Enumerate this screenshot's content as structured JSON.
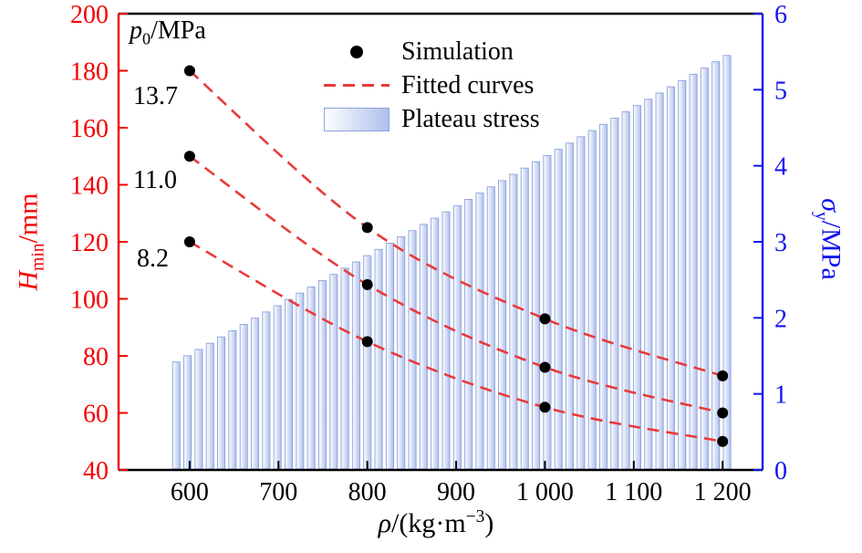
{
  "style": {
    "background": "#ffffff",
    "axis_red": "#f40000",
    "axis_blue": "#1212f0",
    "curve_red": "#e93a3a",
    "bar_fill": "#aebfeb",
    "bar_fill_light": "#ffffff",
    "bar_stroke": "#8ba1dd",
    "dot_color": "#000000",
    "frame_black": "#000000"
  },
  "legend": {
    "items": [
      {
        "label": "Simulation",
        "marker": "black-dot"
      },
      {
        "label": "Fitted curves",
        "marker": "red-dashed-line"
      },
      {
        "label": "Plateau stress",
        "marker": "blue-gradient-rect"
      }
    ]
  },
  "axis_labels": {
    "left": {
      "main": "H",
      "sub": "min",
      "unit": "/mm"
    },
    "right": {
      "main": "σ",
      "sub": "y",
      "unit": "/MPa"
    },
    "x": {
      "main": "ρ",
      "pre": "/(kg·m",
      "sup": "−3",
      "post": ")"
    }
  },
  "annotations": {
    "p0": {
      "main": "p",
      "sub": "0",
      "unit": "/MPa"
    },
    "curve_labels": [
      "13.7",
      "11.0",
      "8.2"
    ]
  },
  "chart_data": [
    {
      "type": "bar",
      "name": "Plateau stress",
      "axis": "right",
      "ylabel": "σy/MPa",
      "ylim": [
        0,
        6
      ],
      "yticks": [
        0,
        1,
        2,
        3,
        4,
        5,
        6
      ],
      "x_start": 585,
      "x_end": 1205,
      "bar_count": 50,
      "value_start": 1.42,
      "value_end": 5.45,
      "note": "thin vertical gradient bars; plateau stress increases linearly with density"
    },
    {
      "type": "scatter",
      "name": "Simulation with fitted curves",
      "axis": "left",
      "xlabel": "ρ/(kg·m−3)",
      "x_range": [
        520,
        1245
      ],
      "xticks": [
        600,
        700,
        800,
        900,
        1000,
        1100,
        1200
      ],
      "xtick_labels": [
        "600",
        "700",
        "800",
        "900",
        "1 000",
        "1 100",
        "1 200"
      ],
      "ylabel": "Hmin/mm",
      "ylim": [
        40,
        200
      ],
      "yticks": [
        40,
        60,
        80,
        100,
        120,
        140,
        160,
        180,
        200
      ],
      "x": [
        600,
        800,
        1000,
        1200
      ],
      "series": [
        {
          "name": "p0 = 13.7 MPa",
          "values": [
            180,
            125,
            93,
            73
          ]
        },
        {
          "name": "p0 = 11.0 MPa",
          "values": [
            150,
            105,
            76,
            60
          ]
        },
        {
          "name": "p0 = 8.2 MPa",
          "values": [
            120,
            85,
            62,
            50
          ]
        }
      ],
      "fit": "red dashed decay curves through each series"
    }
  ]
}
